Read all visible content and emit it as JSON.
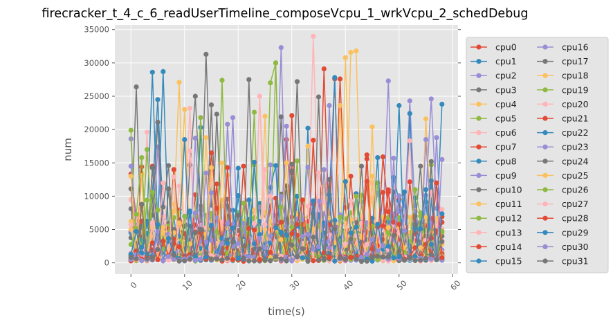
{
  "chart_data": {
    "type": "line",
    "title": "firecracker_t_4_c_6_readUserTimeline_composeVcpu_1_wrkVcpu_2_schedDebug",
    "xlabel": "time(s)",
    "ylabel": "num",
    "xlim": [
      -3,
      61
    ],
    "ylim": [
      -1700,
      35700
    ],
    "xticks": [
      0,
      10,
      20,
      30,
      40,
      50,
      60
    ],
    "yticks": [
      0,
      5000,
      10000,
      15000,
      20000,
      25000,
      30000,
      35000
    ],
    "xtick_labels": [
      "0",
      "10",
      "20",
      "30",
      "40",
      "50",
      "60"
    ],
    "ytick_labels": [
      "0",
      "5000",
      "10000",
      "15000",
      "20000",
      "25000",
      "30000",
      "35000"
    ],
    "grid": true,
    "legend_position": "right-outside",
    "legend_columns": 2,
    "x_count": 59,
    "series": [
      {
        "name": "cpu0",
        "color": "#E24A33",
        "base": 1500,
        "spread": 5000,
        "peaks": [
          [
            4,
            14500
          ],
          [
            29,
            18500
          ],
          [
            38,
            27600
          ],
          [
            44,
            16200
          ],
          [
            50,
            9500
          ]
        ]
      },
      {
        "name": "cpu1",
        "color": "#348ABD",
        "base": 1200,
        "spread": 4200,
        "peaks": [
          [
            4,
            28600
          ],
          [
            6,
            28700
          ],
          [
            38,
            27800
          ],
          [
            50,
            23600
          ]
        ]
      },
      {
        "name": "cpu2",
        "color": "#988ED5",
        "base": 1500,
        "spread": 5000,
        "peaks": [
          [
            0,
            18600
          ],
          [
            28,
            32300
          ],
          [
            48,
            27300
          ],
          [
            56,
            24600
          ]
        ]
      },
      {
        "name": "cpu3",
        "color": "#777777",
        "base": 1300,
        "spread": 4500,
        "peaks": [
          [
            1,
            26400
          ],
          [
            14,
            31300
          ],
          [
            22,
            27500
          ],
          [
            31,
            27200
          ]
        ]
      },
      {
        "name": "cpu4",
        "color": "#FBC15E",
        "base": 1400,
        "spread": 5000,
        "peaks": [
          [
            9,
            27100
          ],
          [
            25,
            22000
          ],
          [
            40,
            30800
          ],
          [
            55,
            21600
          ]
        ]
      },
      {
        "name": "cpu5",
        "color": "#8EBA42",
        "base": 1200,
        "spread": 4800,
        "peaks": [
          [
            0,
            19900
          ],
          [
            17,
            27400
          ],
          [
            27,
            30000
          ],
          [
            46,
            12000
          ]
        ]
      },
      {
        "name": "cpu6",
        "color": "#FFB5B8",
        "base": 1300,
        "spread": 4800,
        "peaks": [
          [
            3,
            19600
          ],
          [
            11,
            23200
          ],
          [
            24,
            25000
          ],
          [
            34,
            34000
          ]
        ]
      },
      {
        "name": "cpu7",
        "color": "#E24A33",
        "base": 1200,
        "spread": 4500,
        "peaks": [
          [
            8,
            14000
          ],
          [
            30,
            22100
          ],
          [
            36,
            29100
          ],
          [
            39,
            27600
          ]
        ]
      },
      {
        "name": "cpu8",
        "color": "#348ABD",
        "base": 1100,
        "spread": 4500,
        "peaks": [
          [
            5,
            24500
          ],
          [
            13,
            20300
          ],
          [
            33,
            20200
          ],
          [
            58,
            23800
          ]
        ]
      },
      {
        "name": "cpu9",
        "color": "#988ED5",
        "base": 1300,
        "spread": 4800,
        "peaks": [
          [
            19,
            21800
          ],
          [
            29,
            20500
          ],
          [
            52,
            24300
          ],
          [
            57,
            18800
          ]
        ]
      },
      {
        "name": "cpu10",
        "color": "#777777",
        "base": 1200,
        "spread": 4500,
        "peaks": [
          [
            5,
            21100
          ],
          [
            12,
            25000
          ],
          [
            15,
            23700
          ],
          [
            35,
            24900
          ]
        ]
      },
      {
        "name": "cpu11",
        "color": "#FBC15E",
        "base": 1300,
        "spread": 4500,
        "peaks": [
          [
            10,
            23000
          ],
          [
            33,
            17500
          ],
          [
            41,
            31600
          ],
          [
            42,
            31800
          ]
        ]
      },
      {
        "name": "cpu12",
        "color": "#8EBA42",
        "base": 1200,
        "spread": 4500,
        "peaks": [
          [
            13,
            21800
          ],
          [
            26,
            27000
          ],
          [
            27,
            30000
          ],
          [
            56,
            14700
          ]
        ]
      },
      {
        "name": "cpu13",
        "color": "#FFB5B8",
        "base": 1100,
        "spread": 4200,
        "peaks": [
          [
            11,
            16800
          ],
          [
            24,
            25000
          ],
          [
            45,
            12000
          ]
        ]
      },
      {
        "name": "cpu14",
        "color": "#E24A33",
        "base": 1100,
        "spread": 4200,
        "peaks": [
          [
            15,
            16500
          ],
          [
            34,
            18400
          ],
          [
            41,
            13000
          ]
        ]
      },
      {
        "name": "cpu15",
        "color": "#348ABD",
        "base": 1100,
        "spread": 4200,
        "peaks": [
          [
            20,
            14200
          ],
          [
            31,
            10000
          ],
          [
            52,
            22400
          ]
        ]
      },
      {
        "name": "cpu16",
        "color": "#988ED5",
        "base": 1200,
        "spread": 4500,
        "peaks": [
          [
            0,
            14500
          ],
          [
            18,
            20800
          ],
          [
            37,
            23600
          ],
          [
            55,
            18500
          ]
        ]
      },
      {
        "name": "cpu17",
        "color": "#777777",
        "base": 1000,
        "spread": 4000,
        "peaks": [
          [
            16,
            22300
          ],
          [
            28,
            21900
          ],
          [
            43,
            14500
          ]
        ]
      },
      {
        "name": "cpu18",
        "color": "#FBC15E",
        "base": 1100,
        "spread": 4200,
        "peaks": [
          [
            14,
            18800
          ],
          [
            29,
            15000
          ],
          [
            39,
            23600
          ]
        ]
      },
      {
        "name": "cpu19",
        "color": "#8EBA42",
        "base": 1000,
        "spread": 4000,
        "peaks": [
          [
            3,
            17000
          ],
          [
            23,
            22600
          ],
          [
            42,
            10000
          ]
        ]
      },
      {
        "name": "cpu20",
        "color": "#FFB5B8",
        "base": 1000,
        "spread": 4000,
        "peaks": [
          [
            6,
            12000
          ],
          [
            25,
            14000
          ],
          [
            52,
            18300
          ]
        ]
      },
      {
        "name": "cpu21",
        "color": "#E24A33",
        "base": 1000,
        "spread": 4000,
        "peaks": [
          [
            2,
            14400
          ],
          [
            21,
            14500
          ],
          [
            47,
            15900
          ]
        ]
      },
      {
        "name": "cpu22",
        "color": "#348ABD",
        "base": 1000,
        "spread": 4000,
        "peaks": [
          [
            10,
            18500
          ],
          [
            27,
            14600
          ],
          [
            46,
            15800
          ]
        ]
      },
      {
        "name": "cpu23",
        "color": "#988ED5",
        "base": 1000,
        "spread": 4000,
        "peaks": [
          [
            12,
            18700
          ],
          [
            26,
            14700
          ],
          [
            49,
            15700
          ]
        ]
      },
      {
        "name": "cpu24",
        "color": "#777777",
        "base": 900,
        "spread": 3800,
        "peaks": [
          [
            0,
            11100
          ],
          [
            30,
            14800
          ],
          [
            54,
            14500
          ]
        ]
      },
      {
        "name": "cpu25",
        "color": "#FBC15E",
        "base": 900,
        "spread": 3800,
        "peaks": [
          [
            0,
            13000
          ],
          [
            17,
            15000
          ],
          [
            45,
            20400
          ]
        ]
      },
      {
        "name": "cpu26",
        "color": "#8EBA42",
        "base": 900,
        "spread": 3800,
        "peaks": [
          [
            2,
            15800
          ],
          [
            31,
            15300
          ],
          [
            53,
            11000
          ]
        ]
      },
      {
        "name": "cpu27",
        "color": "#FFB5B8",
        "base": 900,
        "spread": 3800,
        "peaks": [
          [
            8,
            12900
          ],
          [
            35,
            13500
          ],
          [
            58,
            8000
          ]
        ]
      },
      {
        "name": "cpu28",
        "color": "#E24A33",
        "base": 900,
        "spread": 3800,
        "peaks": [
          [
            18,
            14300
          ],
          [
            44,
            15600
          ],
          [
            57,
            12000
          ]
        ]
      },
      {
        "name": "cpu29",
        "color": "#348ABD",
        "base": 800,
        "spread": 3500,
        "peaks": [
          [
            23,
            15100
          ],
          [
            40,
            12200
          ],
          [
            55,
            11000
          ]
        ]
      },
      {
        "name": "cpu30",
        "color": "#988ED5",
        "base": 800,
        "spread": 3500,
        "peaks": [
          [
            15,
            10500
          ],
          [
            36,
            14000
          ],
          [
            58,
            15500
          ]
        ]
      },
      {
        "name": "cpu31",
        "color": "#777777",
        "base": 800,
        "spread": 3500,
        "peaks": [
          [
            7,
            14600
          ],
          [
            37,
            12500
          ],
          [
            56,
            15200
          ]
        ]
      }
    ]
  }
}
